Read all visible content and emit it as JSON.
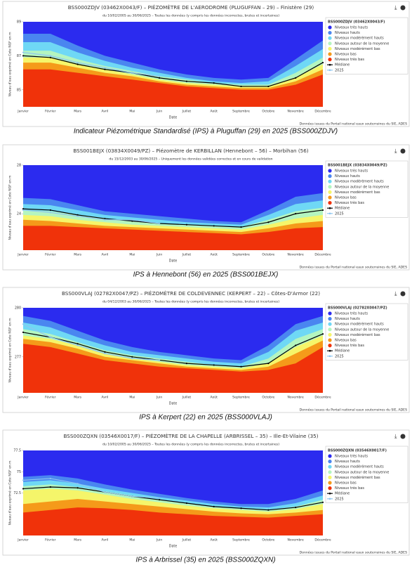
{
  "chart_data": [
    {
      "type": "area",
      "title": "BSS000ZDJV (03462X0043/F) – PIÉZOMÈTRE DE L'AERODROME (PLUGUFFAN – 29) – Finistère (29)",
      "subtitle": "du 10/02/2005 au 30/06/2025 – Toutes les données (y compris les données incorrectes, brutes et incertaines)",
      "y_label": "Niveau d'eau exprimé en Cote NGF en m",
      "x_label": "Date",
      "legend_title": "BSS000ZDJV (03462X0043/F)",
      "source": "Données issues du Portail national eaux souterraines du SIE, ADES",
      "caption": "Indicateur Piézométrique Standardisé (IPS) à Pluguffan (29) en 2025 (BSS000ZDJV)",
      "categories": [
        "Janvier",
        "Février",
        "Mars",
        "Avril",
        "Mai",
        "Juin",
        "Juillet",
        "Août",
        "Septembre",
        "Octobre",
        "Novembre",
        "Décembre"
      ],
      "ylim": [
        84,
        89
      ],
      "yticks": [
        85,
        87,
        89
      ],
      "series": [
        {
          "name": "Niveaux très hauts",
          "color": "#2b2bef",
          "style": "area"
        },
        {
          "name": "Niveaux hauts",
          "color": "#4a86f0",
          "style": "area",
          "values": [
            88.3,
            88.3,
            87.6,
            87.0,
            86.6,
            86.2,
            85.9,
            85.7,
            85.6,
            85.7,
            86.8,
            87.9
          ]
        },
        {
          "name": "Niveaux modérément hauts",
          "color": "#6fd8f5",
          "style": "area",
          "values": [
            87.8,
            87.8,
            87.2,
            86.7,
            86.3,
            86.0,
            85.7,
            85.5,
            85.4,
            85.5,
            86.4,
            87.4
          ]
        },
        {
          "name": "Niveaux autour de la moyenne",
          "color": "#b4f5c0",
          "style": "area",
          "values": [
            87.3,
            87.3,
            86.8,
            86.4,
            86.1,
            85.8,
            85.6,
            85.4,
            85.3,
            85.3,
            86.0,
            86.9
          ]
        },
        {
          "name": "Niveaux modérément bas",
          "color": "#f5f56a",
          "style": "area",
          "values": [
            86.9,
            86.9,
            86.5,
            86.2,
            85.9,
            85.6,
            85.4,
            85.3,
            85.2,
            85.2,
            85.7,
            86.5
          ]
        },
        {
          "name": "Niveaux bas",
          "color": "#f59a1a",
          "style": "area",
          "values": [
            86.6,
            86.6,
            86.3,
            86.0,
            85.8,
            85.5,
            85.3,
            85.2,
            85.1,
            85.1,
            85.5,
            86.2
          ]
        },
        {
          "name": "Niveaux très bas",
          "color": "#f0320a",
          "style": "area",
          "values": [
            86.2,
            86.2,
            86.0,
            85.8,
            85.6,
            85.4,
            85.2,
            85.1,
            85.0,
            85.0,
            85.3,
            85.9
          ]
        },
        {
          "name": "Médiane",
          "color": "#000000",
          "style": "line",
          "values": [
            87.0,
            86.9,
            86.5,
            86.2,
            86.0,
            85.7,
            85.5,
            85.4,
            85.2,
            85.2,
            85.7,
            86.6
          ]
        },
        {
          "name": "2025",
          "color": "#8ec6f0",
          "style": "line",
          "values": [
            87.2,
            87.0,
            86.6,
            86.3,
            86.0,
            85.8,
            null,
            null,
            null,
            null,
            null,
            null
          ]
        }
      ]
    },
    {
      "type": "area",
      "title": "BSS001BEJX (03834X0049/PZ) – Piézomètre de KERBILLAN (Hennebont – 56) – Morbihan (56)",
      "subtitle": "du 15/12/2003 au 30/06/2025 – Uniquement les données validées correctes et en cours de validation",
      "y_label": "Niveau d'eau exprimé en Cote NGF en m",
      "x_label": "Date",
      "legend_title": "BSS001BEJX (03834X0049/PZ)",
      "source": "Données issues du Portail national eaux souterraines du SIE, ADES",
      "caption": "IPS à Hennebont (56) en 2025 (BSS001BEJX)",
      "categories": [
        "Janvier",
        "Février",
        "Mars",
        "Avril",
        "Mai",
        "Juin",
        "Juillet",
        "Août",
        "Septembre",
        "Octobre",
        "Novembre",
        "Décembre"
      ],
      "ylim": [
        21,
        28
      ],
      "yticks": [
        24,
        28
      ],
      "series": [
        {
          "name": "Niveaux très hauts",
          "color": "#2b2bef",
          "style": "area"
        },
        {
          "name": "Niveaux hauts",
          "color": "#4a86f0",
          "style": "area",
          "values": [
            25.3,
            25.2,
            24.7,
            24.2,
            24.0,
            23.8,
            23.6,
            23.4,
            23.3,
            24.3,
            25.4,
            25.7
          ]
        },
        {
          "name": "Niveaux modérément hauts",
          "color": "#6fd8f5",
          "style": "area",
          "values": [
            24.8,
            24.7,
            24.3,
            23.9,
            23.7,
            23.5,
            23.3,
            23.2,
            23.1,
            23.9,
            24.8,
            25.1
          ]
        },
        {
          "name": "Niveaux autour de la moyenne",
          "color": "#b4f5c0",
          "style": "area",
          "values": [
            24.3,
            24.2,
            23.9,
            23.6,
            23.4,
            23.2,
            23.1,
            23.0,
            22.9,
            23.5,
            24.2,
            24.5
          ]
        },
        {
          "name": "Niveaux modérément bas",
          "color": "#f5f56a",
          "style": "area",
          "values": [
            23.9,
            23.8,
            23.5,
            23.3,
            23.1,
            23.0,
            22.9,
            22.8,
            22.7,
            23.1,
            23.6,
            23.9
          ]
        },
        {
          "name": "Niveaux bas",
          "color": "#f59a1a",
          "style": "area",
          "values": [
            23.5,
            23.4,
            23.2,
            23.0,
            22.9,
            22.8,
            22.7,
            22.6,
            22.5,
            22.8,
            23.2,
            23.4
          ]
        },
        {
          "name": "Niveaux très bas",
          "color": "#f0320a",
          "style": "area",
          "values": [
            23.0,
            23.0,
            22.9,
            22.8,
            22.7,
            22.6,
            22.5,
            22.4,
            22.3,
            22.5,
            22.8,
            22.9
          ]
        },
        {
          "name": "Médiane",
          "color": "#000000",
          "style": "line",
          "values": [
            24.4,
            24.3,
            23.9,
            23.6,
            23.4,
            23.2,
            23.1,
            23.0,
            22.9,
            23.3,
            24.0,
            24.3
          ]
        },
        {
          "name": "2025",
          "color": "#8ec6f0",
          "style": "line",
          "values": [
            24.3,
            24.1,
            23.8,
            23.5,
            23.5,
            23.2,
            null,
            null,
            null,
            null,
            null,
            null
          ]
        }
      ]
    },
    {
      "type": "area",
      "title": "BSS000VLAJ (02782X0047/PZ) – PIÉZOMÈTRE DE COLDEVENNEC (KERPERT – 22) – Côtes-D'Armor (22)",
      "subtitle": "du 04/12/2003 au 30/06/2025 – Toutes les données (y compris les données incorrectes, brutes et incertaines)",
      "y_label": "Niveau d'eau exprimé en Cote NGF en m",
      "x_label": "Date",
      "legend_title": "BSS000VLAJ (02782X0047/PZ)",
      "source": "Données issues du Portail national eaux souterraines du SIE, ADES",
      "caption": "IPS à Kerpert (22) en 2025 (BSS000VLAJ)",
      "categories": [
        "Janvier",
        "Février",
        "Mars",
        "Avril",
        "Mai",
        "Juin",
        "Juillet",
        "Août",
        "Septembre",
        "Octobre",
        "Novembre",
        "Décembre"
      ],
      "ylim": [
        274.8,
        280
      ],
      "yticks": [
        277,
        280
      ],
      "series": [
        {
          "name": "Niveaux très hauts",
          "color": "#2b2bef",
          "style": "area"
        },
        {
          "name": "Niveaux hauts",
          "color": "#4a86f0",
          "style": "area",
          "values": [
            279.5,
            279.2,
            278.6,
            278.0,
            277.6,
            277.3,
            277.1,
            276.9,
            276.8,
            277.7,
            279.0,
            279.5
          ]
        },
        {
          "name": "Niveaux modérément hauts",
          "color": "#6fd8f5",
          "style": "area",
          "values": [
            279.1,
            278.8,
            278.2,
            277.7,
            277.3,
            277.1,
            276.9,
            276.7,
            276.6,
            277.3,
            278.6,
            279.1
          ]
        },
        {
          "name": "Niveaux autour de la moyenne",
          "color": "#b4f5c0",
          "style": "area",
          "values": [
            278.7,
            278.4,
            277.9,
            277.4,
            277.1,
            276.9,
            276.7,
            276.5,
            276.4,
            276.9,
            278.1,
            278.7
          ]
        },
        {
          "name": "Niveaux modérément bas",
          "color": "#f5f56a",
          "style": "area",
          "values": [
            278.3,
            278.1,
            277.7,
            277.2,
            276.9,
            276.7,
            276.5,
            276.4,
            276.3,
            276.6,
            277.6,
            278.3
          ]
        },
        {
          "name": "Niveaux bas",
          "color": "#f59a1a",
          "style": "area",
          "values": [
            278.1,
            277.9,
            277.5,
            277.0,
            276.8,
            276.6,
            276.4,
            276.3,
            276.2,
            276.4,
            277.2,
            278.0
          ]
        },
        {
          "name": "Niveaux très bas",
          "color": "#f0320a",
          "style": "area",
          "values": [
            277.8,
            277.6,
            277.2,
            276.8,
            276.6,
            276.4,
            276.3,
            276.2,
            276.1,
            276.2,
            276.6,
            277.6
          ]
        },
        {
          "name": "Médiane",
          "color": "#000000",
          "style": "line",
          "values": [
            278.5,
            278.2,
            277.8,
            277.3,
            277.0,
            276.8,
            276.6,
            276.5,
            276.4,
            276.6,
            277.7,
            278.4
          ]
        },
        {
          "name": "2025",
          "color": "#8ec6f0",
          "style": "line",
          "values": [
            279.0,
            278.2,
            277.7,
            277.2,
            276.9,
            276.8,
            null,
            null,
            null,
            null,
            null,
            null
          ]
        }
      ]
    },
    {
      "type": "area",
      "title": "BSS000ZQXN (03546X0017/F) – PIÉZOMÈTRE DE LA CHAPELLE (ARBRISSEL – 35) – Ille-Et-Vilaine (35)",
      "subtitle": "du 10/02/2005 au 30/06/2025 – Toutes les données (y compris les données incorrectes, brutes et incertaines)",
      "y_label": "Niveau d'eau exprimé en Cote NGF en m",
      "x_label": "Date",
      "legend_title": "BSS000ZQXN (03546X0017/F)",
      "source": "Données issues du Portail national eaux souterraines du SIE, ADES",
      "caption": "IPS à Arbrissel (35) en 2025 (BSS000ZQXN)",
      "categories": [
        "Janvier",
        "Février",
        "Mars",
        "Avril",
        "Mai",
        "Juin",
        "Juillet",
        "Août",
        "Septembre",
        "Octobre",
        "Novembre",
        "Décembre"
      ],
      "ylim": [
        67.5,
        77.5
      ],
      "yticks": [
        72.5,
        75,
        77.5
      ],
      "series": [
        {
          "name": "Niveaux très hauts",
          "color": "#2b2bef",
          "style": "area"
        },
        {
          "name": "Niveaux hauts",
          "color": "#4a86f0",
          "style": "area",
          "values": [
            74.4,
            74.6,
            74.2,
            73.5,
            72.9,
            72.4,
            71.9,
            71.5,
            71.2,
            71.2,
            71.8,
            72.8
          ]
        },
        {
          "name": "Niveaux modérément hauts",
          "color": "#6fd8f5",
          "style": "area",
          "values": [
            73.8,
            74.0,
            73.6,
            73.0,
            72.5,
            72.0,
            71.6,
            71.2,
            70.9,
            70.8,
            71.3,
            72.2
          ]
        },
        {
          "name": "Niveaux autour de la moyenne",
          "color": "#b4f5c0",
          "style": "area",
          "values": [
            73.3,
            73.5,
            73.2,
            72.7,
            72.2,
            71.7,
            71.3,
            70.9,
            70.7,
            70.5,
            70.9,
            71.7
          ]
        },
        {
          "name": "Niveaux modérément bas",
          "color": "#f5f56a",
          "style": "area",
          "values": [
            72.8,
            73.0,
            72.8,
            72.3,
            71.8,
            71.4,
            71.0,
            70.7,
            70.5,
            70.3,
            70.6,
            71.2
          ]
        },
        {
          "name": "Niveaux bas",
          "color": "#f59a1a",
          "style": "area",
          "values": [
            71.2,
            71.5,
            71.8,
            71.5,
            71.2,
            70.9,
            70.6,
            70.3,
            70.1,
            70.0,
            70.2,
            70.5
          ]
        },
        {
          "name": "Niveaux très bas",
          "color": "#f0320a",
          "style": "area",
          "values": [
            70.2,
            70.5,
            70.8,
            70.7,
            70.5,
            70.2,
            70.0,
            69.8,
            69.7,
            69.6,
            69.8,
            70.0
          ]
        },
        {
          "name": "Médiane",
          "color": "#000000",
          "style": "line",
          "values": [
            73.0,
            73.2,
            73.1,
            72.6,
            72.1,
            71.7,
            71.3,
            70.9,
            70.7,
            70.5,
            70.8,
            71.4
          ]
        },
        {
          "name": "2025",
          "color": "#8ec6f0",
          "style": "line",
          "values": [
            74.0,
            74.2,
            73.6,
            72.6,
            72.1,
            71.9,
            null,
            null,
            null,
            null,
            null,
            null
          ]
        }
      ]
    }
  ]
}
